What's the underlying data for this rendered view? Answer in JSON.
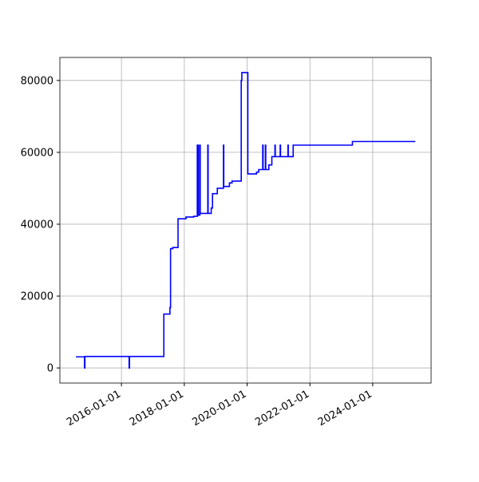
{
  "chart_data": {
    "type": "line",
    "drawstyle": "steps-post",
    "grid": true,
    "x": [
      "2014-07-20",
      "2014-10-28",
      "2014-11-02",
      "2016-03-30",
      "2016-04-04",
      "2017-05-08",
      "2017-07-18",
      "2017-07-25",
      "2017-08-20",
      "2017-10-20",
      "2018-01-20",
      "2018-04-20",
      "2018-06-01",
      "2018-06-05",
      "2018-06-10",
      "2018-06-14",
      "2018-07-01",
      "2018-07-05",
      "2018-10-01",
      "2018-10-05",
      "2018-11-10",
      "2018-11-25",
      "2019-01-20",
      "2019-04-01",
      "2019-04-05",
      "2019-06-10",
      "2019-07-10",
      "2019-10-25",
      "2019-11-01",
      "2020-01-10",
      "2020-04-20",
      "2020-05-15",
      "2020-07-01",
      "2020-07-05",
      "2020-08-01",
      "2020-08-05",
      "2020-09-10",
      "2020-10-15",
      "2020-11-20",
      "2020-11-24",
      "2021-01-20",
      "2021-01-24",
      "2021-04-20",
      "2021-04-24",
      "2021-06-20",
      "2023-05-10",
      "2025-05-10"
    ],
    "series": [
      {
        "color": "#0000ff",
        "values": [
          3100,
          0,
          3200,
          0,
          3200,
          15000,
          16800,
          33200,
          33500,
          41500,
          42000,
          42200,
          62000,
          42500,
          62000,
          42500,
          62000,
          43000,
          62000,
          43000,
          44500,
          48500,
          50000,
          62000,
          50500,
          51500,
          52000,
          80000,
          82200,
          54000,
          54500,
          55200,
          62000,
          55200,
          62000,
          55200,
          56500,
          58800,
          62000,
          58800,
          62000,
          58800,
          62000,
          58800,
          62000,
          63000,
          63000
        ]
      }
    ],
    "xlim": [
      "2014-01-15",
      "2025-11-10"
    ],
    "xticks": [
      "2016-01-01",
      "2018-01-01",
      "2020-01-01",
      "2022-01-01",
      "2024-01-01"
    ],
    "ylim": [
      -4200,
      86400
    ],
    "yticks": [
      0,
      20000,
      40000,
      60000,
      80000
    ]
  }
}
